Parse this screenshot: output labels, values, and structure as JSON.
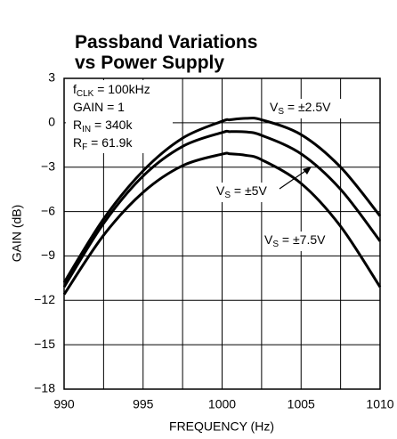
{
  "chart_data": {
    "type": "line",
    "title": [
      "Passband Variations",
      "vs Power Supply"
    ],
    "xlabel": "FREQUENCY (Hz)",
    "ylabel": "GAIN (dB)",
    "x": [
      990,
      992.5,
      995,
      997.5,
      1000,
      1000.5,
      1001.5,
      1002.5,
      1005,
      1007.5,
      1010
    ],
    "series": [
      {
        "name": [
          "V",
          "S",
          " = ±2.5V"
        ],
        "color": "#000000",
        "values": [
          -10.8,
          -6.5,
          -3.25,
          -1.04,
          0.1,
          0.2,
          0.3,
          0.2,
          -0.8,
          -3.0,
          -6.3
        ]
      },
      {
        "name": [
          "V",
          "S",
          " = ±5V"
        ],
        "color": "#000000",
        "values": [
          -11.1,
          -6.8,
          -3.6,
          -1.6,
          -0.66,
          -0.6,
          -0.62,
          -0.85,
          -2.1,
          -4.5,
          -8.0
        ]
      },
      {
        "name": [
          "V",
          "S",
          " = ±7.5V"
        ],
        "color": "#000000",
        "values": [
          -11.6,
          -7.6,
          -4.7,
          -2.9,
          -2.12,
          -2.1,
          -2.2,
          -2.5,
          -4.1,
          -7.0,
          -11.1
        ]
      }
    ],
    "annotations": [
      [
        "f",
        "CLK",
        " = 100kHz"
      ],
      [
        "GAIN = 1"
      ],
      [
        "R",
        "IN",
        " = 340k"
      ],
      [
        "R",
        "F",
        " = 61.9k"
      ]
    ],
    "xlim": [
      990,
      1010
    ],
    "ylim": [
      -18,
      3
    ],
    "xticks": [
      990,
      995,
      1000,
      1005,
      1010
    ],
    "xminorticks": [
      992.5,
      997.5,
      1002.5,
      1007.5
    ],
    "yticks": [
      {
        "value": -18,
        "label": "−18"
      },
      {
        "value": -15,
        "label": "−15"
      },
      {
        "value": -12,
        "label": "−12"
      },
      {
        "value": -9,
        "label": "−9"
      },
      {
        "value": -6,
        "label": "−6"
      },
      {
        "value": -3,
        "label": "−3"
      },
      0,
      3
    ],
    "grid": true
  }
}
